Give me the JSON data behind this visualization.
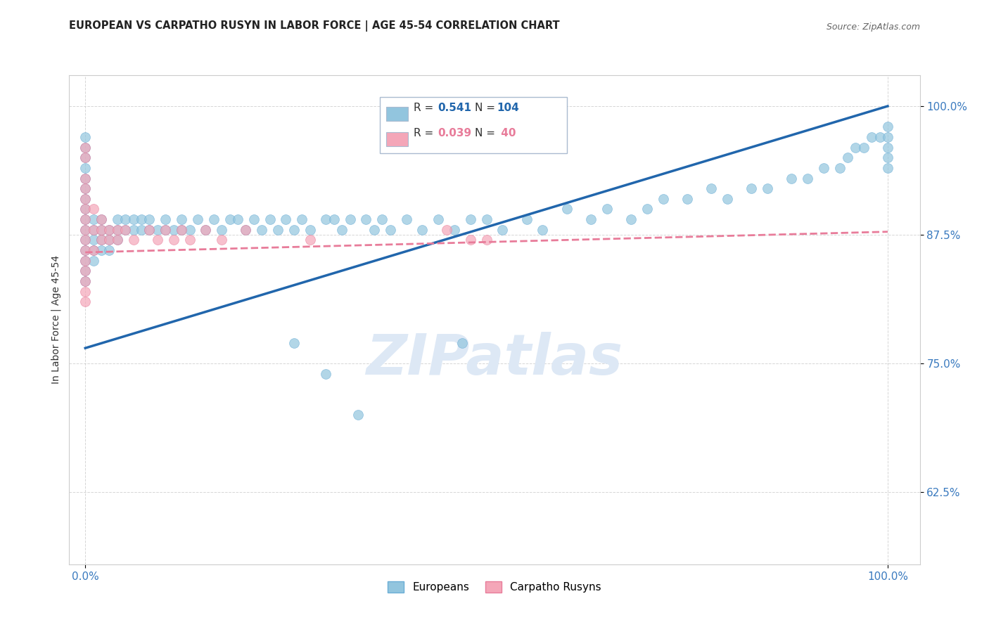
{
  "title": "EUROPEAN VS CARPATHO RUSYN IN LABOR FORCE | AGE 45-54 CORRELATION CHART",
  "source": "Source: ZipAtlas.com",
  "ylabel": "In Labor Force | Age 45-54",
  "blue_color": "#92c5de",
  "blue_edge_color": "#6baed6",
  "pink_color": "#f4a6b8",
  "pink_edge_color": "#e87c9a",
  "blue_line_color": "#2166ac",
  "pink_line_color": "#e87c9a",
  "tick_color": "#3a7abf",
  "grid_color": "#cccccc",
  "title_color": "#222222",
  "watermark_color": "#dde8f5",
  "legend_box_color": "#e8f0f8",
  "legend_box_edge": "#aabbd0",
  "xlim": [
    -0.02,
    1.04
  ],
  "ylim": [
    0.555,
    1.03
  ],
  "yticks": [
    0.625,
    0.75,
    0.875,
    1.0
  ],
  "yticklabels": [
    "62.5%",
    "75.0%",
    "87.5%",
    "100.0%"
  ],
  "xticks": [
    0.0,
    1.0
  ],
  "xticklabels": [
    "0.0%",
    "100.0%"
  ],
  "eu_r": 0.541,
  "eu_n": 104,
  "ca_r": 0.039,
  "ca_n": 40,
  "eu_trend_x0": 0.0,
  "eu_trend_y0": 0.765,
  "eu_trend_x1": 1.0,
  "eu_trend_y1": 1.0,
  "ca_trend_x0": 0.0,
  "ca_trend_y0": 0.858,
  "ca_trend_x1": 1.0,
  "ca_trend_y1": 0.878,
  "europeans_x": [
    0.0,
    0.0,
    0.0,
    0.0,
    0.0,
    0.0,
    0.0,
    0.0,
    0.0,
    0.0,
    0.0,
    0.0,
    0.0,
    0.0,
    0.0,
    0.01,
    0.01,
    0.01,
    0.01,
    0.01,
    0.02,
    0.02,
    0.02,
    0.02,
    0.03,
    0.03,
    0.03,
    0.04,
    0.04,
    0.04,
    0.05,
    0.05,
    0.06,
    0.06,
    0.07,
    0.07,
    0.08,
    0.08,
    0.09,
    0.1,
    0.1,
    0.11,
    0.12,
    0.12,
    0.13,
    0.14,
    0.15,
    0.16,
    0.17,
    0.18,
    0.19,
    0.2,
    0.21,
    0.22,
    0.23,
    0.24,
    0.25,
    0.26,
    0.27,
    0.28,
    0.3,
    0.31,
    0.32,
    0.33,
    0.35,
    0.36,
    0.37,
    0.38,
    0.4,
    0.42,
    0.44,
    0.46,
    0.48,
    0.5,
    0.52,
    0.55,
    0.57,
    0.6,
    0.63,
    0.65,
    0.68,
    0.7,
    0.72,
    0.75,
    0.78,
    0.8,
    0.83,
    0.85,
    0.88,
    0.9,
    0.92,
    0.94,
    0.95,
    0.96,
    0.97,
    0.98,
    0.99,
    1.0,
    1.0,
    1.0,
    1.0,
    1.0,
    0.26,
    0.3,
    0.34,
    0.47
  ],
  "europeans_y": [
    0.97,
    0.96,
    0.95,
    0.94,
    0.93,
    0.92,
    0.91,
    0.9,
    0.89,
    0.88,
    0.87,
    0.86,
    0.85,
    0.84,
    0.83,
    0.89,
    0.88,
    0.87,
    0.86,
    0.85,
    0.89,
    0.88,
    0.87,
    0.86,
    0.88,
    0.87,
    0.86,
    0.89,
    0.88,
    0.87,
    0.89,
    0.88,
    0.89,
    0.88,
    0.89,
    0.88,
    0.89,
    0.88,
    0.88,
    0.89,
    0.88,
    0.88,
    0.89,
    0.88,
    0.88,
    0.89,
    0.88,
    0.89,
    0.88,
    0.89,
    0.89,
    0.88,
    0.89,
    0.88,
    0.89,
    0.88,
    0.89,
    0.88,
    0.89,
    0.88,
    0.89,
    0.89,
    0.88,
    0.89,
    0.89,
    0.88,
    0.89,
    0.88,
    0.89,
    0.88,
    0.89,
    0.88,
    0.89,
    0.89,
    0.88,
    0.89,
    0.88,
    0.9,
    0.89,
    0.9,
    0.89,
    0.9,
    0.91,
    0.91,
    0.92,
    0.91,
    0.92,
    0.92,
    0.93,
    0.93,
    0.94,
    0.94,
    0.95,
    0.96,
    0.96,
    0.97,
    0.97,
    0.98,
    0.97,
    0.96,
    0.95,
    0.94,
    0.77,
    0.74,
    0.7,
    0.77
  ],
  "carpatho_x": [
    0.0,
    0.0,
    0.0,
    0.0,
    0.0,
    0.0,
    0.0,
    0.0,
    0.0,
    0.0,
    0.0,
    0.0,
    0.0,
    0.0,
    0.0,
    0.01,
    0.01,
    0.01,
    0.02,
    0.02,
    0.02,
    0.03,
    0.03,
    0.04,
    0.04,
    0.05,
    0.06,
    0.08,
    0.09,
    0.1,
    0.11,
    0.12,
    0.13,
    0.15,
    0.17,
    0.2,
    0.28,
    0.45,
    0.48,
    0.5
  ],
  "carpatho_y": [
    0.96,
    0.95,
    0.93,
    0.92,
    0.91,
    0.9,
    0.89,
    0.88,
    0.87,
    0.86,
    0.85,
    0.84,
    0.83,
    0.82,
    0.81,
    0.9,
    0.88,
    0.86,
    0.89,
    0.88,
    0.87,
    0.88,
    0.87,
    0.88,
    0.87,
    0.88,
    0.87,
    0.88,
    0.87,
    0.88,
    0.87,
    0.88,
    0.87,
    0.88,
    0.87,
    0.88,
    0.87,
    0.88,
    0.87,
    0.87
  ]
}
